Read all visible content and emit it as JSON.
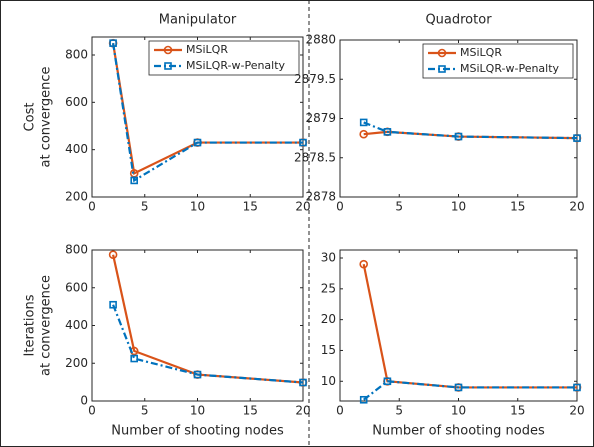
{
  "chart_data": [
    {
      "type": "line",
      "title": "Manipulator",
      "ylabel": [
        "Cost",
        "at convergence"
      ],
      "x": [
        2,
        4,
        10,
        20
      ],
      "xlim": [
        0,
        20
      ],
      "xticks": [
        0,
        5,
        10,
        15,
        20
      ],
      "ylim": [
        200,
        876
      ],
      "yticks": [
        200,
        400,
        600,
        800
      ],
      "legend": "upper right",
      "series": [
        {
          "name": "MSiLQR",
          "color": "#d95319",
          "values": [
            850,
            300,
            430,
            430
          ]
        },
        {
          "name": "MSiLQR-w-Penalty",
          "color": "#0072bd",
          "values": [
            850,
            270,
            430,
            430
          ]
        }
      ]
    },
    {
      "type": "line",
      "title": "Quadrotor",
      "x": [
        2,
        4,
        10,
        20
      ],
      "xlim": [
        0,
        20
      ],
      "xticks": [
        0,
        5,
        10,
        15,
        20
      ],
      "ylim": [
        2878,
        2880
      ],
      "yticks": [
        2878,
        2878.5,
        2879,
        2879.5,
        2880
      ],
      "legend": "upper right",
      "series": [
        {
          "name": "MSiLQR",
          "color": "#d95319",
          "values": [
            2878.8,
            2878.83,
            2878.77,
            2878.75
          ]
        },
        {
          "name": "MSiLQR-w-Penalty",
          "color": "#0072bd",
          "values": [
            2878.95,
            2878.83,
            2878.77,
            2878.75
          ]
        }
      ]
    },
    {
      "type": "line",
      "ylabel": [
        "Iterations",
        "at convergence"
      ],
      "xlabel": "Number of shooting nodes",
      "x": [
        2,
        4,
        10,
        20
      ],
      "xlim": [
        0,
        20
      ],
      "xticks": [
        0,
        5,
        10,
        15,
        20
      ],
      "ylim": [
        0,
        800
      ],
      "yticks": [
        0,
        200,
        400,
        600,
        800
      ],
      "series": [
        {
          "name": "MSiLQR",
          "color": "#d95319",
          "values": [
            775,
            265,
            140,
            98
          ]
        },
        {
          "name": "MSiLQR-w-Penalty",
          "color": "#0072bd",
          "values": [
            510,
            225,
            140,
            98
          ]
        }
      ]
    },
    {
      "type": "line",
      "xlabel": "Number of shooting nodes",
      "x": [
        2,
        4,
        10,
        20
      ],
      "xlim": [
        0,
        20
      ],
      "xticks": [
        0,
        5,
        10,
        15,
        20
      ],
      "ylim": [
        6.8,
        31.3
      ],
      "yticks": [
        10,
        15,
        20,
        25,
        30
      ],
      "series": [
        {
          "name": "MSiLQR",
          "color": "#d95319",
          "values": [
            29,
            10,
            9,
            9
          ]
        },
        {
          "name": "MSiLQR-w-Penalty",
          "color": "#0072bd",
          "values": [
            7,
            10,
            9,
            9
          ]
        }
      ]
    }
  ]
}
